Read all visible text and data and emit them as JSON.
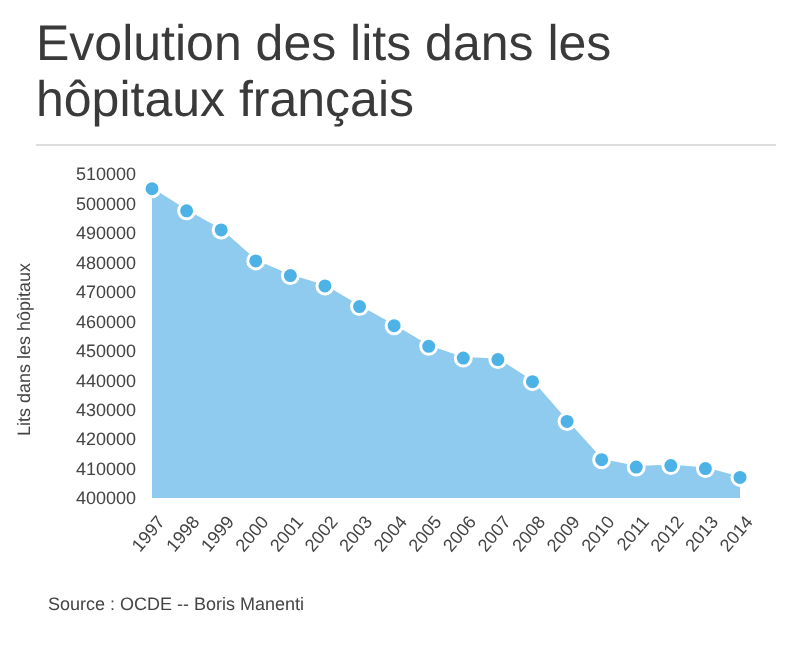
{
  "chart_data": {
    "type": "area",
    "title": "Evolution des lits dans les hôpitaux français",
    "ylabel": "Lits dans les hôpitaux",
    "categories": [
      "1997",
      "1998",
      "1999",
      "2000",
      "2001",
      "2002",
      "2003",
      "2004",
      "2005",
      "2006",
      "2007",
      "2008",
      "2009",
      "2010",
      "2011",
      "2012",
      "2013",
      "2014"
    ],
    "series": [
      {
        "color": "#8ecbee",
        "values": [
          505000,
          497500,
          491000,
          480500,
          475500,
          472000,
          465000,
          458500,
          451500,
          447500,
          447000,
          439500,
          426000,
          413000,
          410500,
          411000,
          410000,
          407000
        ]
      }
    ],
    "marker": "circle",
    "ylim": [
      400000,
      510000
    ],
    "yticks": [
      400000,
      410000,
      420000,
      430000,
      440000,
      450000,
      460000,
      470000,
      480000,
      490000,
      500000,
      510000
    ],
    "grid": false,
    "legend": false,
    "annotations": [
      "Source : OCDE  --  Boris Manenti"
    ]
  }
}
